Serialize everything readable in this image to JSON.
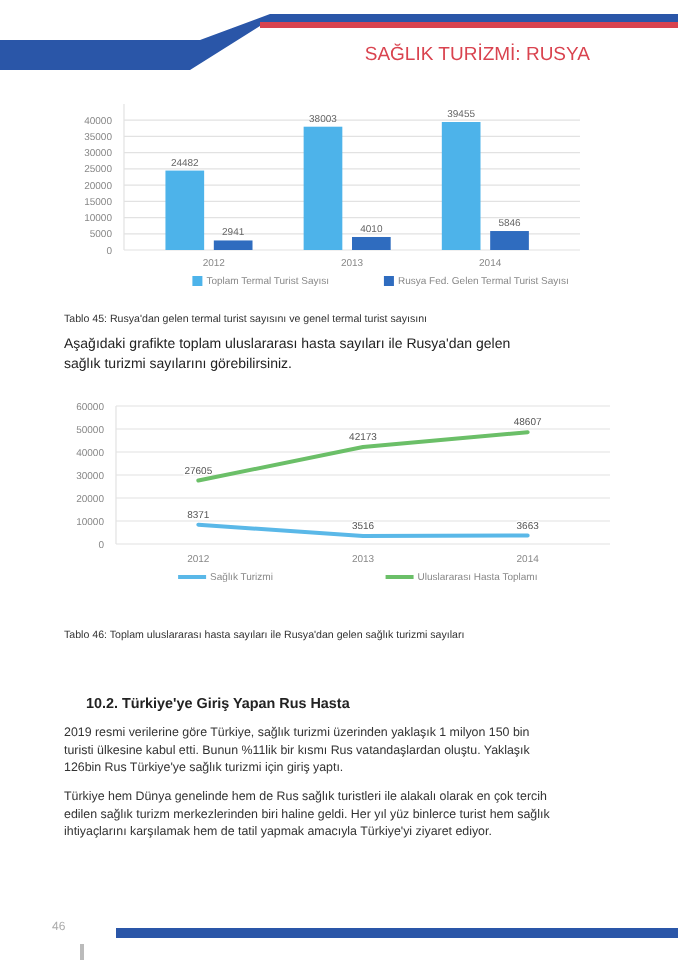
{
  "chart_data": [
    {
      "type": "bar",
      "categories": [
        "2012",
        "2013",
        "2014"
      ],
      "series": [
        {
          "name": "Toplam Termal Turist Sayısı",
          "color": "#4db3ea",
          "values": [
            24482,
            38003,
            39455
          ]
        },
        {
          "name": "Rusya Fed. Gelen Termal Turist Sayısı",
          "color": "#2f6cbf",
          "values": [
            2941,
            4010,
            5846
          ]
        }
      ],
      "ylim": [
        0,
        45000
      ],
      "yticks": [
        0,
        5000,
        10000,
        15000,
        20000,
        25000,
        30000,
        35000,
        40000
      ],
      "grid": "y",
      "legend": "bottom",
      "data_labels": true,
      "annotations": [
        "SAĞLIK TURİZMİ: RUSYA",
        "Tablo 45: Rusya'dan gelen termal turist sayısını ve genel termal turist sayısını",
        "Aşağıdaki grafikte toplam uluslararası hasta sayıları ile Rusya'dan gelen sağlık turizmi sayılarını görebilirsiniz."
      ]
    },
    {
      "type": "line",
      "categories": [
        "2012",
        "2013",
        "2014"
      ],
      "series": [
        {
          "name": "Sağlık Turizmi",
          "color": "#5ab8e8",
          "values": [
            8371,
            3516,
            3663
          ]
        },
        {
          "name": "Uluslararası Hasta Toplamı",
          "color": "#6bbf68",
          "values": [
            27605,
            42173,
            48607
          ]
        }
      ],
      "ylim": [
        0,
        60000
      ],
      "yticks": [
        0,
        10000,
        20000,
        30000,
        40000,
        50000,
        60000
      ],
      "grid": "y",
      "legend": "bottom",
      "data_labels": true,
      "annotations": [
        "Tablo 46: Toplam uluslararası hasta sayıları ile Rusya'dan gelen sağlık turizmi sayıları",
        "10.2. Türkiye'ye Giriş Yapan Rus Hasta",
        "2019 resmi verilerine göre Türkiye, sağlık turizmi üzerinden yaklaşık 1 milyon 150 bin turisti ülkesine kabul etti. Bunun %11lik bir kısmı Rus vatandaşlardan oluştu. Yaklaşık 126bin Rus Türkiye'ye sağlık turizmi için giriş yaptı.",
        "Türkiye hem Dünya genelinde hem de Rus sağlık turistleri ile alakalı olarak en çok tercih edilen sağlık turizm merkezlerinden biri haline geldi. Her yıl yüz binlerce turist hem sağlık ihtiyaçlarını karşılamak hem de tatil yapmak amacıyla Türkiye'yi ziyaret ediyor.",
        "46"
      ]
    }
  ]
}
